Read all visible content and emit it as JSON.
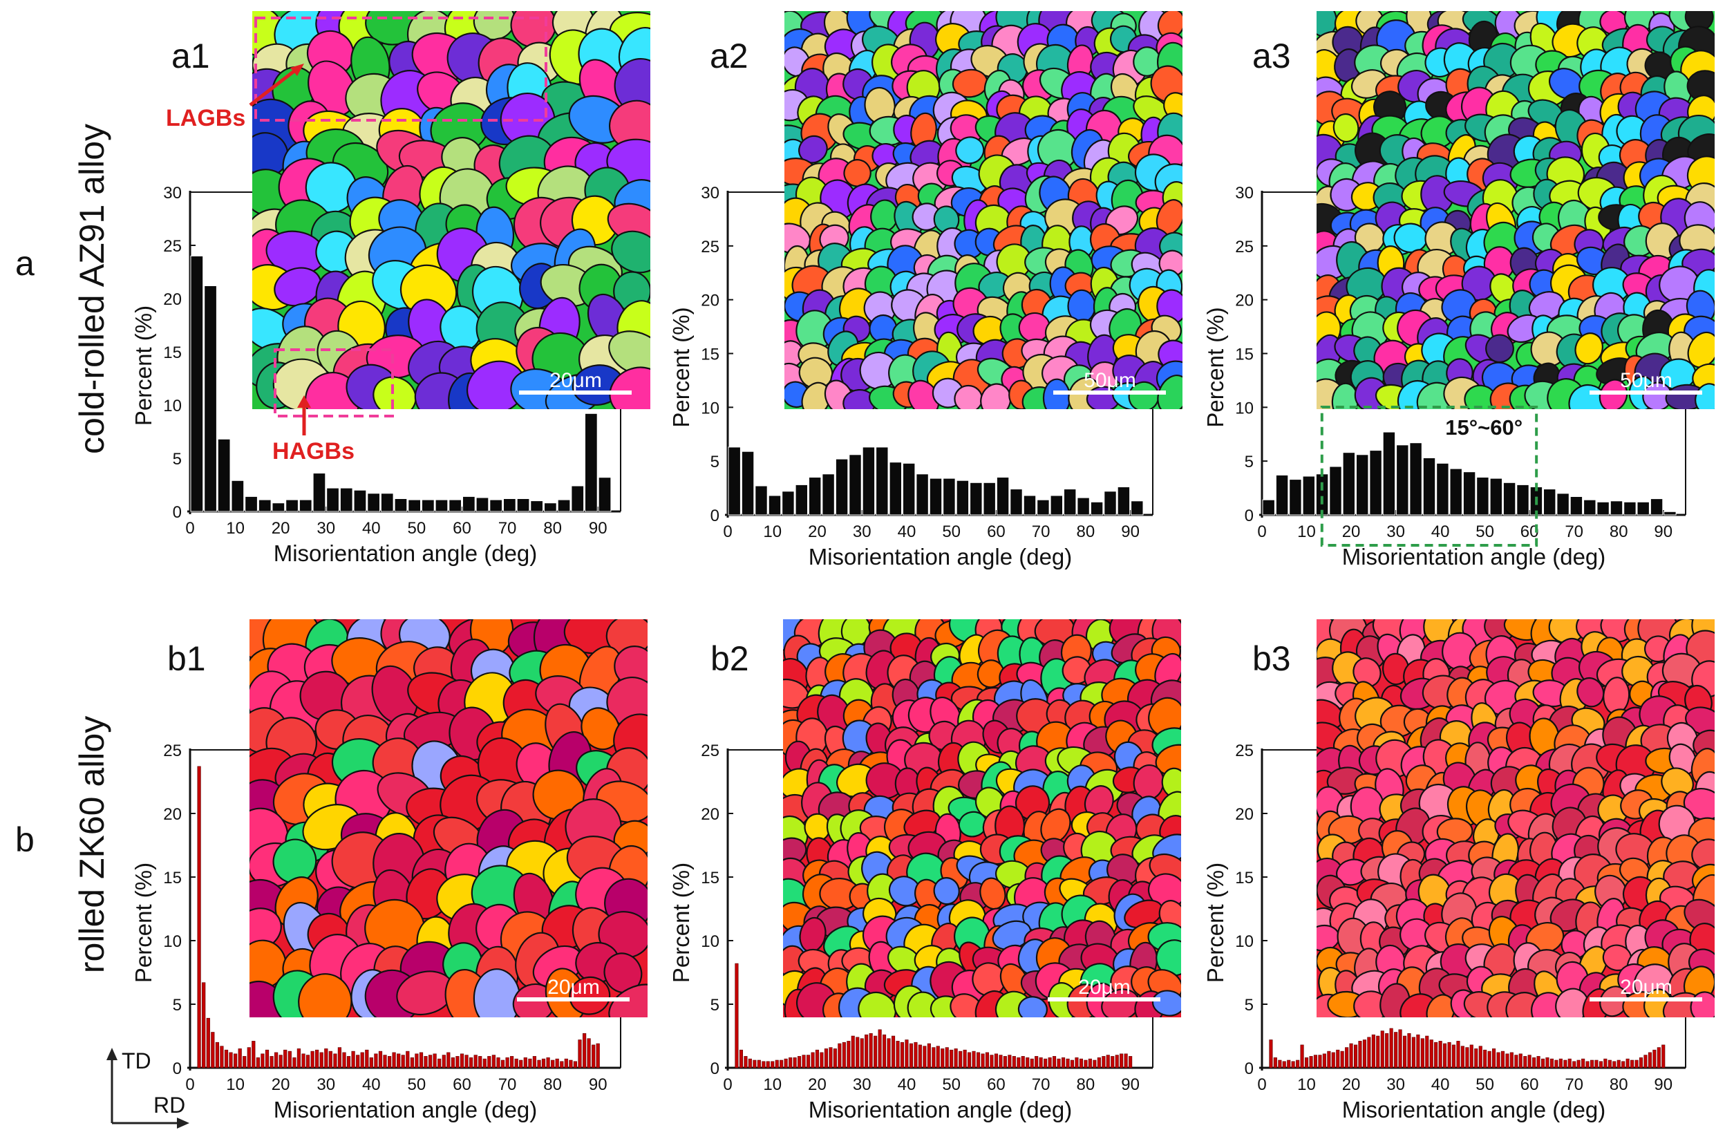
{
  "colors": {
    "black_bar": "#0a0a0a",
    "red_bar": "#c40000",
    "annotation_red": "#e02020",
    "annotation_magenta": "#f03c9a",
    "range_box_green": "#2e9d4a"
  },
  "rows": [
    {
      "letter": "a",
      "alloy": "cold-rolled AZ91 alloy"
    },
    {
      "letter": "b",
      "alloy": "rolled ZK60 alloy"
    }
  ],
  "axes": {
    "xlabel": "Misorientation angle (deg)",
    "ylabel": "Percent (%)",
    "xticks": [
      "0",
      "10",
      "20",
      "30",
      "40",
      "50",
      "60",
      "70",
      "80",
      "90"
    ],
    "yticks_a": [
      "0",
      "5",
      "10",
      "15",
      "20",
      "25",
      "30"
    ],
    "yticks_b": [
      "0",
      "5",
      "10",
      "15",
      "20",
      "25"
    ]
  },
  "annotations": {
    "lagbs": "LAGBs",
    "hagbs": "HAGBs",
    "range": "15°~60°",
    "td": "TD",
    "rd": "RD"
  },
  "chart_data": [
    {
      "id": "a1",
      "type": "bar",
      "title": "",
      "xlabel": "Misorientation angle (deg)",
      "ylabel": "Percent (%)",
      "xlim": [
        0,
        95
      ],
      "ylim": [
        0,
        30
      ],
      "bin_width": 3,
      "color": "#0a0a0a",
      "scalebar": "20μm",
      "map": "azmixed",
      "x": [
        1.5,
        4.5,
        7.5,
        10.5,
        13.5,
        16.5,
        19.5,
        22.5,
        25.5,
        28.5,
        31.5,
        34.5,
        37.5,
        40.5,
        43.5,
        46.5,
        49.5,
        52.5,
        55.5,
        58.5,
        61.5,
        64.5,
        67.5,
        70.5,
        73.5,
        76.5,
        79.5,
        82.5,
        85.5,
        88.5,
        91.5
      ],
      "values": [
        24.0,
        21.2,
        6.8,
        2.9,
        1.4,
        1.1,
        0.8,
        1.1,
        1.1,
        3.6,
        2.2,
        2.2,
        2.0,
        1.7,
        1.7,
        1.2,
        1.1,
        1.1,
        1.1,
        1.1,
        1.4,
        1.3,
        1.1,
        1.2,
        1.2,
        1.0,
        0.8,
        1.1,
        2.4,
        9.2,
        3.2
      ]
    },
    {
      "id": "a2",
      "type": "bar",
      "title": "",
      "xlabel": "Misorientation angle (deg)",
      "ylabel": "Percent (%)",
      "xlim": [
        0,
        95
      ],
      "ylim": [
        0,
        30
      ],
      "bin_width": 3,
      "color": "#0a0a0a",
      "scalebar": "50μm",
      "map": "azfine",
      "x": [
        1.5,
        4.5,
        7.5,
        10.5,
        13.5,
        16.5,
        19.5,
        22.5,
        25.5,
        28.5,
        31.5,
        34.5,
        37.5,
        40.5,
        43.5,
        46.5,
        49.5,
        52.5,
        55.5,
        58.5,
        61.5,
        64.5,
        67.5,
        70.5,
        73.5,
        76.5,
        79.5,
        82.5,
        85.5,
        88.5,
        91.5
      ],
      "values": [
        6.3,
        5.9,
        2.7,
        1.8,
        2.2,
        2.8,
        3.5,
        3.8,
        5.2,
        5.6,
        6.3,
        6.3,
        4.9,
        4.8,
        3.8,
        3.4,
        3.4,
        3.2,
        3.0,
        3.0,
        3.5,
        2.4,
        1.8,
        1.4,
        1.8,
        2.4,
        1.6,
        1.2,
        2.2,
        2.6,
        1.3
      ]
    },
    {
      "id": "a3",
      "type": "bar",
      "title": "",
      "xlabel": "Misorientation angle (deg)",
      "ylabel": "Percent (%)",
      "xlim": [
        0,
        95
      ],
      "ylim": [
        0,
        30
      ],
      "bin_width": 3,
      "color": "#0a0a0a",
      "scalebar": "50μm",
      "map": "azequi",
      "x": [
        1.5,
        4.5,
        7.5,
        10.5,
        13.5,
        16.5,
        19.5,
        22.5,
        25.5,
        28.5,
        31.5,
        34.5,
        37.5,
        40.5,
        43.5,
        46.5,
        49.5,
        52.5,
        55.5,
        58.5,
        61.5,
        64.5,
        67.5,
        70.5,
        73.5,
        76.5,
        79.5,
        82.5,
        85.5,
        88.5,
        91.5
      ],
      "values": [
        1.4,
        3.7,
        3.3,
        3.6,
        3.8,
        4.5,
        5.8,
        5.6,
        6.0,
        7.7,
        6.5,
        6.7,
        5.3,
        4.8,
        4.3,
        4.0,
        3.5,
        3.4,
        3.0,
        2.8,
        2.6,
        2.4,
        2.0,
        1.7,
        1.4,
        1.2,
        1.3,
        1.2,
        1.2,
        1.5,
        0.3
      ],
      "highlight_range": [
        15,
        60
      ]
    },
    {
      "id": "b1",
      "type": "bar",
      "title": "",
      "xlabel": "Misorientation angle (deg)",
      "ylabel": "Percent (%)",
      "xlim": [
        0,
        95
      ],
      "ylim": [
        0,
        25
      ],
      "bin_width": 1,
      "color": "#c40000",
      "scalebar": "20μm",
      "map": "zkmixed",
      "x": [
        2,
        3,
        4,
        5,
        6,
        7,
        8,
        9,
        10,
        11,
        12,
        13,
        14,
        15,
        16,
        17,
        18,
        19,
        20,
        21,
        22,
        23,
        24,
        25,
        26,
        27,
        28,
        29,
        30,
        31,
        32,
        33,
        34,
        35,
        36,
        37,
        38,
        39,
        40,
        41,
        42,
        43,
        44,
        45,
        46,
        47,
        48,
        49,
        50,
        51,
        52,
        53,
        54,
        55,
        56,
        57,
        58,
        59,
        60,
        61,
        62,
        63,
        64,
        65,
        66,
        67,
        68,
        69,
        70,
        71,
        72,
        73,
        74,
        75,
        76,
        77,
        78,
        79,
        80,
        81,
        82,
        83,
        84,
        85,
        86,
        87,
        88,
        89,
        90
      ],
      "values": [
        23.7,
        6.7,
        3.9,
        2.8,
        2.0,
        1.7,
        1.4,
        1.2,
        1.1,
        1.5,
        0.9,
        1.6,
        2.1,
        0.8,
        1.1,
        1.4,
        0.9,
        1.2,
        1.0,
        1.4,
        1.3,
        0.8,
        1.5,
        1.1,
        1.0,
        1.3,
        1.4,
        1.2,
        1.5,
        1.3,
        1.1,
        1.6,
        1.2,
        0.9,
        1.3,
        1.0,
        1.2,
        1.4,
        0.8,
        1.1,
        1.3,
        1.0,
        0.9,
        1.2,
        1.1,
        1.0,
        1.3,
        0.8,
        1.1,
        1.2,
        0.9,
        1.0,
        1.1,
        0.7,
        1.0,
        1.2,
        0.8,
        0.9,
        1.1,
        1.0,
        0.8,
        1.0,
        0.9,
        0.7,
        0.9,
        1.0,
        0.8,
        0.6,
        0.8,
        0.9,
        0.7,
        0.6,
        0.8,
        0.7,
        0.9,
        0.6,
        0.7,
        0.8,
        0.6,
        0.7,
        0.5,
        0.7,
        0.6,
        0.5,
        2.2,
        2.7,
        2.3,
        1.8,
        1.9
      ]
    },
    {
      "id": "b2",
      "type": "bar",
      "title": "",
      "xlabel": "Misorientation angle (deg)",
      "ylabel": "Percent (%)",
      "xlim": [
        0,
        95
      ],
      "ylim": [
        0,
        25
      ],
      "bin_width": 1,
      "color": "#c40000",
      "scalebar": "20μm",
      "map": "zkfine",
      "x": [
        2,
        3,
        4,
        5,
        6,
        7,
        8,
        9,
        10,
        11,
        12,
        13,
        14,
        15,
        16,
        17,
        18,
        19,
        20,
        21,
        22,
        23,
        24,
        25,
        26,
        27,
        28,
        29,
        30,
        31,
        32,
        33,
        34,
        35,
        36,
        37,
        38,
        39,
        40,
        41,
        42,
        43,
        44,
        45,
        46,
        47,
        48,
        49,
        50,
        51,
        52,
        53,
        54,
        55,
        56,
        57,
        58,
        59,
        60,
        61,
        62,
        63,
        64,
        65,
        66,
        67,
        68,
        69,
        70,
        71,
        72,
        73,
        74,
        75,
        76,
        77,
        78,
        79,
        80,
        81,
        82,
        83,
        84,
        85,
        86,
        87,
        88,
        89,
        90
      ],
      "values": [
        8.2,
        1.4,
        0.9,
        0.7,
        0.6,
        0.6,
        0.5,
        0.5,
        0.5,
        0.6,
        0.6,
        0.7,
        0.8,
        0.8,
        0.9,
        1.0,
        1.0,
        1.2,
        1.4,
        1.2,
        1.5,
        1.6,
        1.5,
        1.9,
        2.0,
        2.1,
        2.5,
        2.4,
        2.3,
        2.6,
        2.7,
        2.5,
        3.0,
        2.6,
        2.3,
        2.5,
        2.1,
        2.0,
        2.2,
        1.9,
        2.0,
        1.8,
        1.7,
        1.9,
        1.6,
        1.7,
        1.5,
        1.6,
        1.4,
        1.5,
        1.3,
        1.4,
        1.2,
        1.3,
        1.2,
        1.1,
        1.2,
        1.0,
        1.1,
        1.0,
        0.9,
        1.0,
        0.9,
        0.8,
        0.9,
        0.8,
        0.7,
        0.9,
        0.8,
        0.7,
        0.8,
        0.9,
        0.7,
        0.8,
        0.7,
        0.6,
        0.8,
        0.7,
        0.6,
        0.7,
        0.6,
        0.8,
        0.9,
        1.0,
        0.9,
        1.0,
        1.1,
        1.1,
        0.9
      ]
    },
    {
      "id": "b3",
      "type": "bar",
      "title": "",
      "xlabel": "Misorientation angle (deg)",
      "ylabel": "Percent (%)",
      "xlim": [
        0,
        95
      ],
      "ylim": [
        0,
        25
      ],
      "bin_width": 1,
      "color": "#c40000",
      "scalebar": "20μm",
      "map": "zkequi",
      "x": [
        2,
        3,
        4,
        5,
        6,
        7,
        8,
        9,
        10,
        11,
        12,
        13,
        14,
        15,
        16,
        17,
        18,
        19,
        20,
        21,
        22,
        23,
        24,
        25,
        26,
        27,
        28,
        29,
        30,
        31,
        32,
        33,
        34,
        35,
        36,
        37,
        38,
        39,
        40,
        41,
        42,
        43,
        44,
        45,
        46,
        47,
        48,
        49,
        50,
        51,
        52,
        53,
        54,
        55,
        56,
        57,
        58,
        59,
        60,
        61,
        62,
        63,
        64,
        65,
        66,
        67,
        68,
        69,
        70,
        71,
        72,
        73,
        74,
        75,
        76,
        77,
        78,
        79,
        80,
        81,
        82,
        83,
        84,
        85,
        86,
        87,
        88,
        89,
        90
      ],
      "values": [
        2.2,
        0.8,
        0.6,
        0.5,
        0.6,
        0.5,
        0.6,
        1.8,
        0.8,
        0.9,
        1.0,
        1.0,
        1.1,
        1.3,
        1.2,
        1.4,
        1.3,
        1.6,
        1.9,
        1.8,
        2.1,
        2.2,
        2.4,
        2.6,
        2.5,
        2.9,
        2.7,
        3.1,
        2.8,
        3.0,
        2.5,
        2.7,
        2.4,
        2.6,
        2.3,
        2.5,
        2.2,
        2.0,
        2.1,
        1.9,
        2.0,
        1.8,
        2.1,
        1.7,
        1.6,
        1.8,
        1.5,
        1.7,
        1.4,
        1.3,
        1.5,
        1.2,
        1.3,
        1.1,
        1.2,
        1.0,
        1.1,
        0.9,
        1.0,
        0.8,
        0.9,
        0.7,
        0.8,
        0.7,
        0.6,
        0.7,
        0.6,
        0.7,
        0.5,
        0.6,
        0.7,
        0.5,
        0.6,
        0.6,
        0.5,
        0.7,
        0.6,
        0.5,
        0.6,
        0.5,
        0.7,
        0.6,
        0.6,
        0.8,
        1.0,
        1.2,
        1.4,
        1.6,
        1.8
      ]
    }
  ]
}
